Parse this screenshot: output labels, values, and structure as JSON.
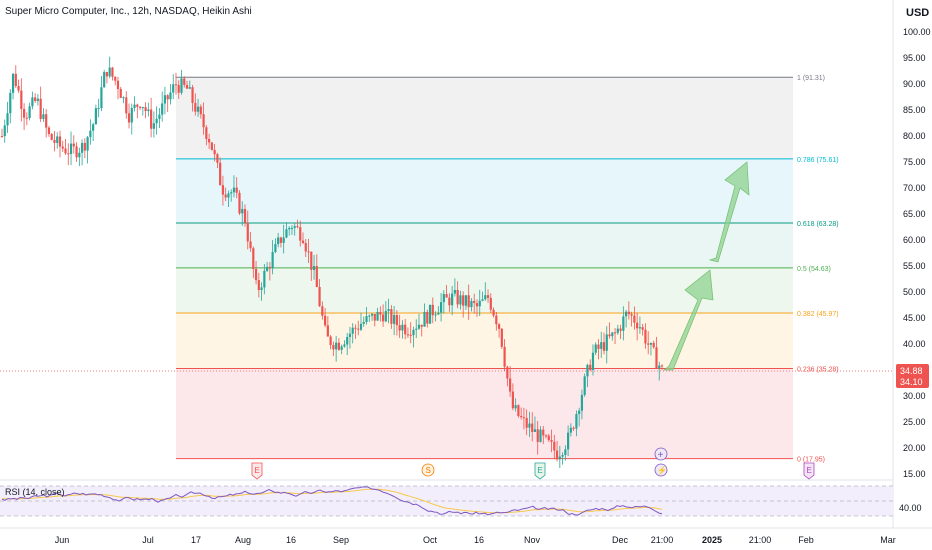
{
  "header": {
    "title": "Super Micro Computer, Inc., 12h, NASDAQ, Heikin Ashi",
    "currency": "USD"
  },
  "price_scale": {
    "labels": [
      "100.00",
      "95.00",
      "90.00",
      "85.00",
      "80.00",
      "75.00",
      "70.00",
      "65.00",
      "60.00",
      "55.00",
      "50.00",
      "45.00",
      "40.00",
      "35.00",
      "30.00",
      "25.00",
      "20.00",
      "15.00"
    ],
    "badge_top": "34.88",
    "badge_bottom": "34.10"
  },
  "rsi": {
    "title": "RSI (14, close)",
    "scale_label": "40.00"
  },
  "time_axis": {
    "labels": [
      "Jun",
      "Jul",
      "17",
      "Aug",
      "16",
      "Sep",
      "Oct",
      "16",
      "Nov",
      "Dec",
      "21:00",
      "2025",
      "21:00",
      "Feb",
      "Mar"
    ]
  },
  "events": {
    "earnings_1": "E",
    "dividend": "S",
    "earnings_2": "E",
    "earnings_3": "E",
    "add": "+",
    "flash": "⚡"
  },
  "colors": {
    "up": "#26a69a",
    "down": "#ef5350",
    "fib_0": "#ef5350",
    "fib_0236": "#ef5350",
    "fib_0382": "#f7a21b",
    "fib_05": "#4caf50",
    "fib_0618": "#089981",
    "fib_0786": "#00bcd4",
    "fib_1": "#787b86",
    "rsi_line": "#7e57c2",
    "rsi_ma": "#f7c94a",
    "arrow": "#8fd18f"
  },
  "chart_data": {
    "type": "candlestick",
    "title": "Super Micro Computer, Inc., 12h, NASDAQ, Heikin Ashi",
    "ylim": [
      13,
      104
    ],
    "y_ticks": [
      15,
      20,
      25,
      30,
      35,
      40,
      45,
      50,
      55,
      60,
      65,
      70,
      75,
      80,
      85,
      90,
      95,
      100
    ],
    "last_price": 34.88,
    "fib_levels": [
      {
        "ratio": "0",
        "label": "0 (17.95)",
        "price": 17.95
      },
      {
        "ratio": "0.236",
        "label": "0.236 (35.28)",
        "price": 35.28
      },
      {
        "ratio": "0.382",
        "label": "0.382 (45.97)",
        "price": 45.97
      },
      {
        "ratio": "0.5",
        "label": "0.5 (54.63)",
        "price": 54.63
      },
      {
        "ratio": "0.618",
        "label": "0.618 (63.28)",
        "price": 63.28
      },
      {
        "ratio": "0.786",
        "label": "0.786 (75.61)",
        "price": 75.61
      },
      {
        "ratio": "1",
        "label": "1 (91.31)",
        "price": 91.31
      }
    ],
    "close_path": [
      {
        "x": 0,
        "y": 80
      },
      {
        "x": 0.5,
        "y": 92
      },
      {
        "x": 1,
        "y": 84
      },
      {
        "x": 1.5,
        "y": 87
      },
      {
        "x": 2,
        "y": 80
      },
      {
        "x": 2.5,
        "y": 78
      },
      {
        "x": 3,
        "y": 77
      },
      {
        "x": 3.5,
        "y": 78
      },
      {
        "x": 4,
        "y": 83
      },
      {
        "x": 4.5,
        "y": 93
      },
      {
        "x": 5,
        "y": 90
      },
      {
        "x": 5.5,
        "y": 84
      },
      {
        "x": 6,
        "y": 87
      },
      {
        "x": 6.5,
        "y": 82
      },
      {
        "x": 7,
        "y": 86
      },
      {
        "x": 7.5,
        "y": 90
      },
      {
        "x": 8,
        "y": 89
      },
      {
        "x": 8.5,
        "y": 84
      },
      {
        "x": 9,
        "y": 79
      },
      {
        "x": 9.5,
        "y": 70
      },
      {
        "x": 10,
        "y": 69
      },
      {
        "x": 10.5,
        "y": 64
      },
      {
        "x": 11,
        "y": 50
      },
      {
        "x": 11.5,
        "y": 55
      },
      {
        "x": 12,
        "y": 60
      },
      {
        "x": 12.5,
        "y": 63
      },
      {
        "x": 13,
        "y": 61
      },
      {
        "x": 13.5,
        "y": 53
      },
      {
        "x": 14,
        "y": 41
      },
      {
        "x": 14.5,
        "y": 40
      },
      {
        "x": 15,
        "y": 42
      },
      {
        "x": 15.5,
        "y": 44
      },
      {
        "x": 16,
        "y": 45
      },
      {
        "x": 16.5,
        "y": 46
      },
      {
        "x": 17,
        "y": 44
      },
      {
        "x": 17.5,
        "y": 43
      },
      {
        "x": 18,
        "y": 44
      },
      {
        "x": 18.5,
        "y": 46
      },
      {
        "x": 19,
        "y": 48
      },
      {
        "x": 19.5,
        "y": 49
      },
      {
        "x": 20,
        "y": 48
      },
      {
        "x": 20.5,
        "y": 47
      },
      {
        "x": 21,
        "y": 49
      },
      {
        "x": 21.5,
        "y": 43
      },
      {
        "x": 22,
        "y": 28
      },
      {
        "x": 22.5,
        "y": 25
      },
      {
        "x": 23,
        "y": 23
      },
      {
        "x": 23.5,
        "y": 21
      },
      {
        "x": 24,
        "y": 19
      },
      {
        "x": 24.5,
        "y": 22
      },
      {
        "x": 25,
        "y": 30
      },
      {
        "x": 25.5,
        "y": 38
      },
      {
        "x": 26,
        "y": 40
      },
      {
        "x": 26.5,
        "y": 42
      },
      {
        "x": 27,
        "y": 46
      },
      {
        "x": 27.5,
        "y": 44
      },
      {
        "x": 28,
        "y": 39
      },
      {
        "x": 28.5,
        "y": 35
      }
    ]
  }
}
